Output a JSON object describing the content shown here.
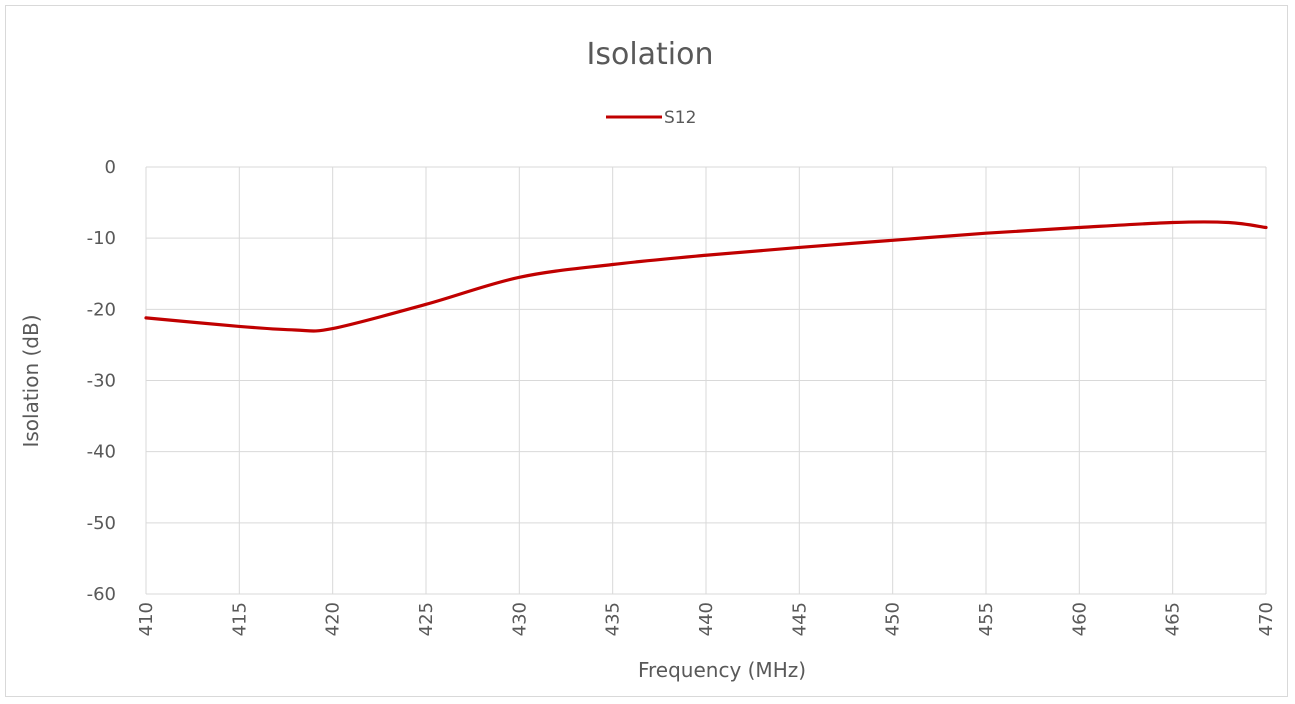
{
  "chart_data": {
    "type": "line",
    "title": "Isolation",
    "xlabel": "Frequency (MHz)",
    "ylabel": "Isolation (dB)",
    "xlim": [
      410,
      470
    ],
    "ylim": [
      -60,
      0
    ],
    "x_ticks": [
      "410",
      "415",
      "420",
      "425",
      "430",
      "435",
      "440",
      "445",
      "450",
      "455",
      "460",
      "465",
      "470"
    ],
    "y_ticks": [
      "0",
      "-10",
      "-20",
      "-30",
      "-40",
      "-50",
      "-60"
    ],
    "grid": true,
    "legend_position": "top",
    "series": [
      {
        "name": "S12",
        "color": "#c00000",
        "x": [
          410,
          415,
          418,
          420,
          425,
          430,
          435,
          440,
          445,
          450,
          455,
          460,
          465,
          468,
          470
        ],
        "y": [
          -21.2,
          -22.4,
          -22.9,
          -22.7,
          -19.3,
          -15.5,
          -13.7,
          -12.4,
          -11.3,
          -10.3,
          -9.3,
          -8.5,
          -7.8,
          -7.8,
          -8.5
        ]
      }
    ]
  }
}
